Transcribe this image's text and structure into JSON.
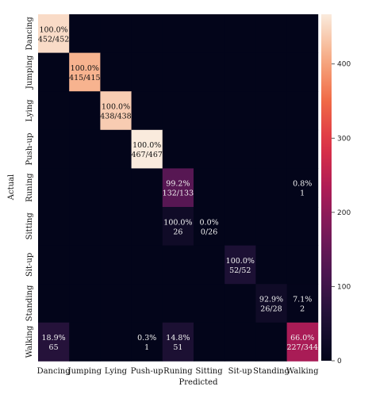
{
  "chart_data": {
    "type": "heatmap",
    "title": "",
    "xlabel": "Predicted",
    "ylabel": "Actual",
    "x_categories": [
      "Dancing",
      "Jumping",
      "Lying",
      "Push-up",
      "Runing",
      "Sitting",
      "Sit-up",
      "Standing",
      "Walking"
    ],
    "y_categories": [
      "Dancing",
      "Jumping",
      "Lying",
      "Push-up",
      "Runing",
      "Sitting",
      "Sit-up",
      "Standing",
      "Walking"
    ],
    "values": [
      [
        452,
        0,
        0,
        0,
        0,
        0,
        0,
        0,
        0
      ],
      [
        0,
        415,
        0,
        0,
        0,
        0,
        0,
        0,
        0
      ],
      [
        0,
        0,
        438,
        0,
        0,
        0,
        0,
        0,
        0
      ],
      [
        0,
        0,
        0,
        467,
        0,
        0,
        0,
        0,
        0
      ],
      [
        0,
        0,
        0,
        0,
        132,
        0,
        0,
        0,
        1
      ],
      [
        0,
        0,
        0,
        0,
        26,
        0,
        0,
        0,
        0
      ],
      [
        0,
        0,
        0,
        0,
        0,
        0,
        52,
        0,
        0
      ],
      [
        0,
        0,
        0,
        0,
        0,
        0,
        0,
        26,
        2
      ],
      [
        65,
        0,
        0,
        1,
        51,
        0,
        0,
        0,
        227
      ]
    ],
    "annotations": [
      {
        "row": 0,
        "col": 0,
        "percent": "100.0%",
        "count": "452/452"
      },
      {
        "row": 1,
        "col": 1,
        "percent": "100.0%",
        "count": "415/415"
      },
      {
        "row": 2,
        "col": 2,
        "percent": "100.0%",
        "count": "438/438"
      },
      {
        "row": 3,
        "col": 3,
        "percent": "100.0%",
        "count": "467/467"
      },
      {
        "row": 4,
        "col": 4,
        "percent": "99.2%",
        "count": "132/133"
      },
      {
        "row": 4,
        "col": 8,
        "percent": "0.8%",
        "count": "1"
      },
      {
        "row": 5,
        "col": 4,
        "percent": "100.0%",
        "count": "26"
      },
      {
        "row": 5,
        "col": 5,
        "percent": "0.0%",
        "count": "0/26"
      },
      {
        "row": 6,
        "col": 6,
        "percent": "100.0%",
        "count": "52/52"
      },
      {
        "row": 7,
        "col": 7,
        "percent": "92.9%",
        "count": "26/28"
      },
      {
        "row": 7,
        "col": 8,
        "percent": "7.1%",
        "count": "2"
      },
      {
        "row": 8,
        "col": 0,
        "percent": "18.9%",
        "count": "65"
      },
      {
        "row": 8,
        "col": 3,
        "percent": "0.3%",
        "count": "1"
      },
      {
        "row": 8,
        "col": 4,
        "percent": "14.8%",
        "count": "51"
      },
      {
        "row": 8,
        "col": 8,
        "percent": "66.0%",
        "count": "227/344"
      }
    ],
    "colorbar": {
      "min": 0,
      "max": 467,
      "ticks": [
        0,
        100,
        200,
        300,
        400
      ],
      "colormap": "rocket"
    }
  }
}
